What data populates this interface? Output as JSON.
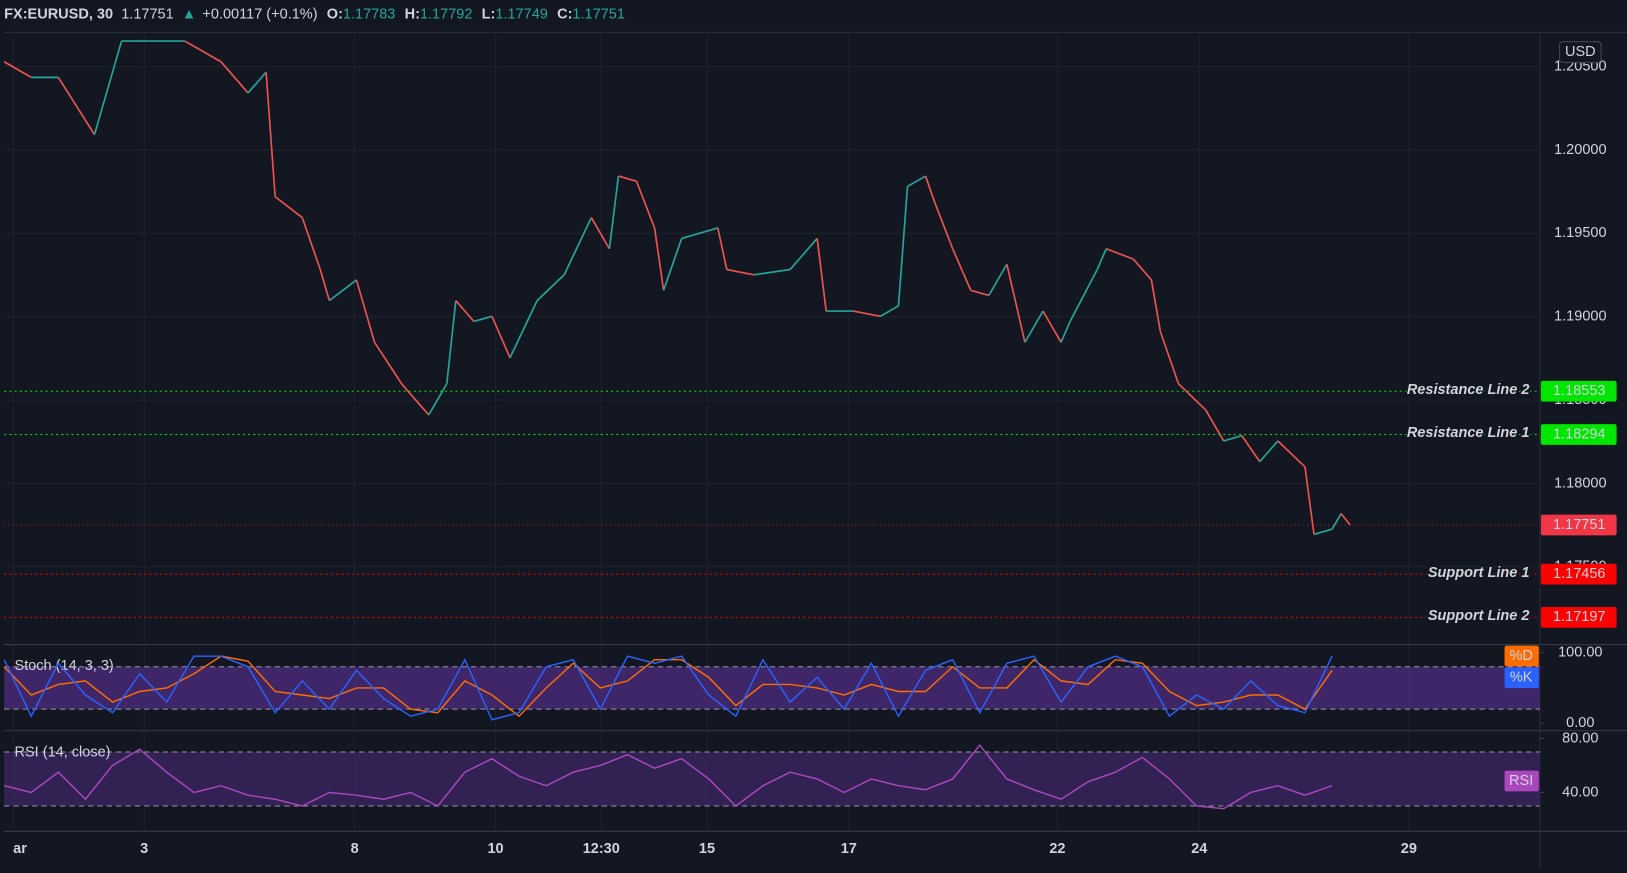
{
  "header": {
    "symbol": "FX:EURUSD, 30",
    "last": "1.17751",
    "arrow": "▲",
    "change": "+0.00117 (+0.1%)",
    "ohlc": [
      {
        "label": "O:",
        "value": "1.17783"
      },
      {
        "label": "H:",
        "value": "1.17792"
      },
      {
        "label": "L:",
        "value": "1.17749"
      },
      {
        "label": "C:",
        "value": "1.17751"
      }
    ]
  },
  "chart_data": [
    {
      "type": "line",
      "currency": "USD",
      "up_color": "#26a69a",
      "down_color": "#ef5350",
      "grid": true,
      "x": [
        0,
        3,
        6,
        10,
        13,
        20,
        24,
        27,
        29,
        30,
        33,
        35,
        36,
        39,
        41,
        44,
        47,
        49,
        50,
        52,
        54,
        56,
        59,
        62,
        65,
        67,
        68,
        70,
        72,
        73,
        75,
        79,
        80,
        83,
        87,
        90,
        91,
        94,
        97,
        99,
        100,
        102,
        103,
        105,
        107,
        109,
        111,
        113,
        115,
        117,
        118,
        121,
        122,
        125,
        127,
        128,
        130,
        133,
        135,
        137,
        139,
        141,
        144,
        145,
        147,
        148,
        149
      ],
      "values": [
        1.2053,
        1.20436,
        1.20436,
        1.20093,
        1.20654,
        1.20654,
        1.2053,
        1.20343,
        1.20467,
        1.1972,
        1.19595,
        1.19283,
        1.19097,
        1.19221,
        1.18847,
        1.18598,
        1.18411,
        1.18598,
        1.19097,
        1.18972,
        1.19003,
        1.18754,
        1.19097,
        1.19252,
        1.19595,
        1.19408,
        1.19844,
        1.19813,
        1.19533,
        1.19159,
        1.1947,
        1.19533,
        1.19283,
        1.19252,
        1.19283,
        1.1947,
        1.19034,
        1.19034,
        1.19003,
        1.19065,
        1.19782,
        1.19844,
        1.19688,
        1.19408,
        1.19159,
        1.19128,
        1.19315,
        1.18847,
        1.19034,
        1.18847,
        1.18972,
        1.19283,
        1.19408,
        1.19346,
        1.19221,
        1.1891,
        1.18598,
        1.18442,
        1.18255,
        1.18287,
        1.18131,
        1.18255,
        1.181,
        1.17695,
        1.17726,
        1.17819,
        1.17751
      ],
      "last_color": "#f23645",
      "xlim": [
        0,
        170
      ],
      "xticks": [
        {
          "value": 1,
          "label": "ar"
        },
        {
          "value": 15.5,
          "label": "3"
        },
        {
          "value": 38.8,
          "label": "8"
        },
        {
          "value": 54.4,
          "label": "10"
        },
        {
          "value": 66.1,
          "label": "12:30"
        },
        {
          "value": 77.8,
          "label": "15"
        },
        {
          "value": 93.5,
          "label": "17"
        },
        {
          "value": 116.6,
          "label": "22"
        },
        {
          "value": 132.3,
          "label": "24"
        },
        {
          "value": 155.5,
          "label": "29"
        }
      ],
      "ylim": [
        1.1704,
        1.207
      ],
      "yticks": [
        {
          "value": 1.175,
          "label": "1.17500"
        },
        {
          "value": 1.18,
          "label": "1.18000"
        },
        {
          "value": 1.185,
          "label": "1.18500"
        },
        {
          "value": 1.19,
          "label": "1.19000"
        },
        {
          "value": 1.195,
          "label": "1.19500"
        },
        {
          "value": 1.2,
          "label": "1.20000"
        },
        {
          "value": 1.205,
          "label": "1.20500"
        }
      ],
      "price_lines": [
        {
          "label": "Resistance Line 2",
          "value": 1.18553,
          "color": "#00e600",
          "text_color": "#000000"
        },
        {
          "label": "Resistance Line 1",
          "value": 1.18294,
          "color": "#00e600",
          "text_color": "#000000"
        },
        {
          "label": "Support Line 1",
          "value": 1.17456,
          "color": "#ff0000",
          "text_color": "#ffffff"
        },
        {
          "label": "Support Line 2",
          "value": 1.17197,
          "color": "#ff0000",
          "text_color": "#ffffff"
        }
      ]
    },
    {
      "type": "line",
      "title": "Stoch (14, 3, 3)",
      "x": [
        0,
        3,
        6,
        9,
        12,
        15,
        18,
        21,
        24,
        27,
        30,
        33,
        36,
        39,
        42,
        45,
        48,
        51,
        54,
        57,
        60,
        63,
        66,
        69,
        72,
        75,
        78,
        81,
        84,
        87,
        90,
        93,
        96,
        99,
        102,
        105,
        108,
        111,
        114,
        117,
        120,
        123,
        126,
        129,
        132,
        135,
        138,
        141,
        144,
        147
      ],
      "series": [
        {
          "name": "%D",
          "color": "#ff6d00",
          "values": [
            80,
            40,
            55,
            60,
            30,
            45,
            50,
            70,
            95,
            88,
            45,
            40,
            35,
            50,
            50,
            20,
            15,
            60,
            40,
            10,
            50,
            85,
            50,
            60,
            90,
            90,
            65,
            25,
            55,
            55,
            50,
            40,
            55,
            45,
            45,
            80,
            50,
            50,
            90,
            60,
            55,
            90,
            85,
            45,
            25,
            30,
            40,
            40,
            20,
            75
          ]
        },
        {
          "name": "%K",
          "color": "#2962ff",
          "values": [
            90,
            10,
            85,
            40,
            15,
            70,
            30,
            95,
            95,
            80,
            15,
            60,
            20,
            75,
            35,
            10,
            20,
            90,
            5,
            15,
            80,
            90,
            20,
            95,
            85,
            95,
            40,
            10,
            90,
            30,
            65,
            20,
            85,
            10,
            75,
            90,
            15,
            85,
            95,
            30,
            80,
            95,
            80,
            10,
            40,
            20,
            60,
            25,
            15,
            95
          ]
        }
      ],
      "ylim": [
        -9,
        110
      ],
      "yticks": [
        {
          "value": 0,
          "label": "0.00"
        },
        {
          "value": 100,
          "label": "100.00"
        }
      ],
      "bands": [
        20,
        80
      ],
      "band_color": "#4a2a7a"
    },
    {
      "type": "line",
      "title": "RSI (14, close)",
      "x": [
        0,
        3,
        6,
        9,
        12,
        15,
        18,
        21,
        24,
        27,
        30,
        33,
        36,
        39,
        42,
        45,
        48,
        51,
        54,
        57,
        60,
        63,
        66,
        69,
        72,
        75,
        78,
        81,
        84,
        87,
        90,
        93,
        96,
        99,
        102,
        105,
        108,
        111,
        114,
        117,
        120,
        123,
        126,
        129,
        132,
        135,
        138,
        141,
        144,
        147
      ],
      "series": [
        {
          "name": "RSI",
          "color": "#ab47bc",
          "values": [
            45,
            40,
            55,
            35,
            60,
            72,
            55,
            40,
            45,
            38,
            35,
            30,
            40,
            38,
            35,
            40,
            30,
            55,
            65,
            52,
            45,
            55,
            60,
            68,
            58,
            65,
            50,
            30,
            45,
            55,
            50,
            40,
            50,
            45,
            42,
            50,
            75,
            50,
            42,
            35,
            48,
            55,
            66,
            50,
            30,
            28,
            40,
            45,
            38,
            45
          ]
        }
      ],
      "ylim": [
        12,
        85
      ],
      "yticks": [
        {
          "value": 40,
          "label": "40.00"
        },
        {
          "value": 80,
          "label": "80.00"
        }
      ],
      "bands": [
        30,
        70
      ],
      "band_color": "#3b2560"
    }
  ]
}
